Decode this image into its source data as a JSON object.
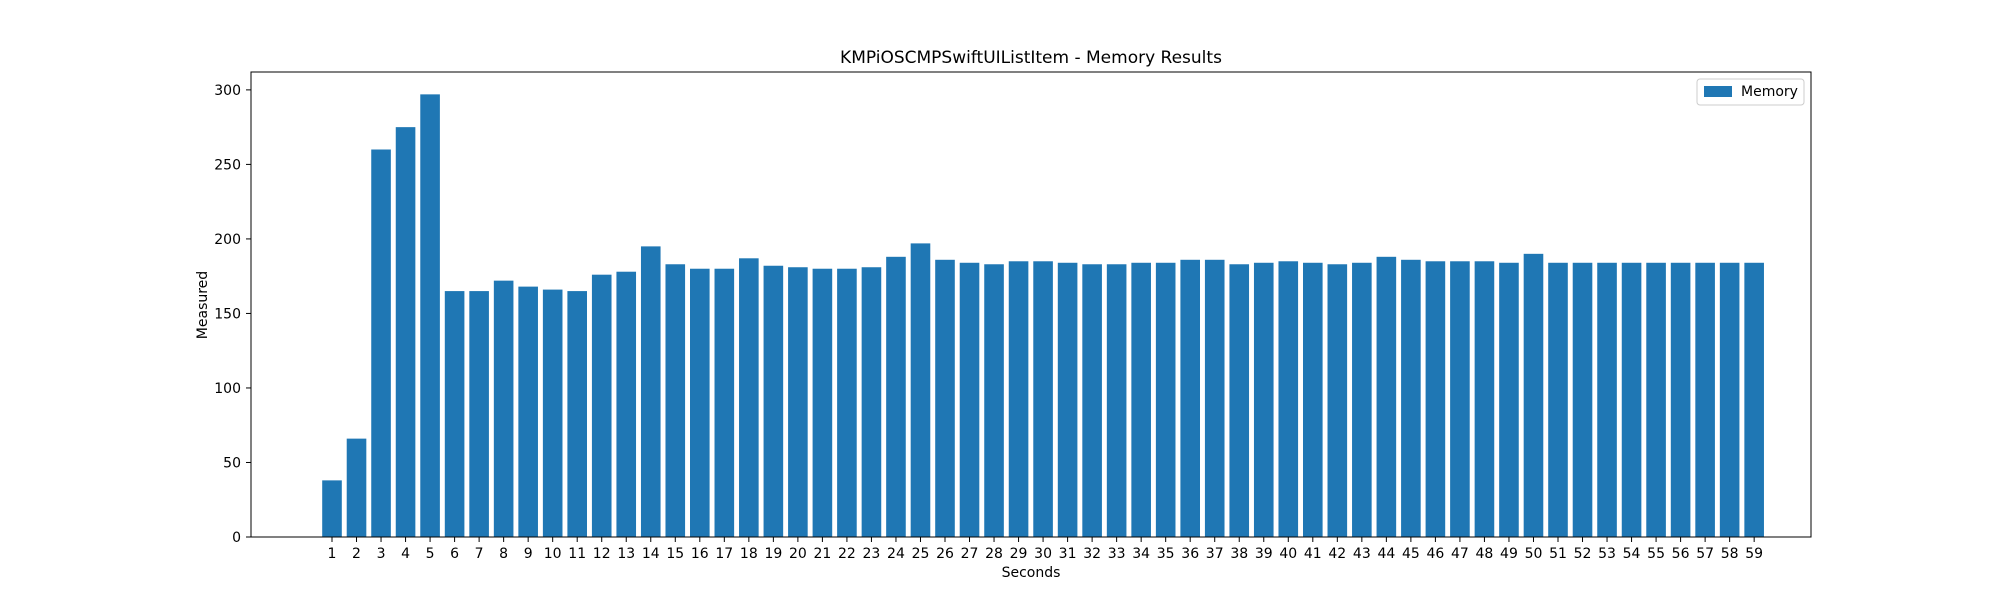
{
  "chart_data": {
    "type": "bar",
    "title": "KMPiOSCMPSwiftUIListItem - Memory Results",
    "xlabel": "Seconds",
    "ylabel": "Measured",
    "ylim": [
      0,
      312
    ],
    "yticks": [
      0,
      50,
      100,
      150,
      200,
      250,
      300
    ],
    "grid": false,
    "legend_position": "top-right",
    "categories": [
      "1",
      "2",
      "3",
      "4",
      "5",
      "6",
      "7",
      "8",
      "9",
      "10",
      "11",
      "12",
      "13",
      "14",
      "15",
      "16",
      "17",
      "18",
      "19",
      "20",
      "21",
      "22",
      "23",
      "24",
      "25",
      "26",
      "27",
      "28",
      "29",
      "30",
      "31",
      "32",
      "33",
      "34",
      "35",
      "36",
      "37",
      "38",
      "39",
      "40",
      "41",
      "42",
      "43",
      "44",
      "45",
      "46",
      "47",
      "48",
      "49",
      "50",
      "51",
      "52",
      "53",
      "54",
      "55",
      "56",
      "57",
      "58",
      "59"
    ],
    "series": [
      {
        "name": "Memory",
        "color": "#1f77b4",
        "values": [
          38,
          66,
          260,
          275,
          297,
          165,
          165,
          172,
          168,
          166,
          165,
          176,
          178,
          195,
          183,
          180,
          180,
          187,
          182,
          181,
          180,
          180,
          181,
          188,
          197,
          186,
          184,
          183,
          185,
          185,
          184,
          183,
          183,
          184,
          184,
          186,
          186,
          183,
          184,
          185,
          184,
          183,
          184,
          188,
          186,
          185,
          185,
          185,
          184,
          190,
          184,
          184,
          184,
          184,
          184,
          184,
          184,
          184,
          184
        ]
      }
    ]
  }
}
